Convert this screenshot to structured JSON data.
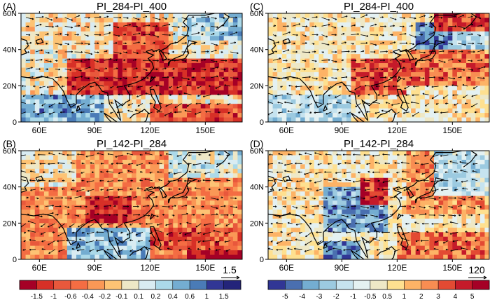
{
  "chart_data": [
    {
      "type": "heatmap",
      "panel_label": "(A)",
      "title": "PI_284-PI_400",
      "x_ticks": [
        "60E",
        "90E",
        "120E",
        "150E"
      ],
      "y_ticks": [
        "0",
        "20N",
        "40N",
        "60N"
      ],
      "xlim": [
        50,
        170
      ],
      "ylim": [
        0,
        60
      ],
      "overlay": "wind vectors and coastlines",
      "colorbar": "left"
    },
    {
      "type": "heatmap",
      "panel_label": "(B)",
      "title": "PI_142-PI_284",
      "x_ticks": [
        "60E",
        "90E",
        "120E",
        "150E"
      ],
      "y_ticks": [
        "0",
        "20N",
        "40N",
        "60N"
      ],
      "xlim": [
        50,
        170
      ],
      "ylim": [
        0,
        60
      ],
      "overlay": "wind vectors and coastlines",
      "colorbar": "left",
      "reference_vector": "1.5"
    },
    {
      "type": "heatmap",
      "panel_label": "(C)",
      "title": "PI_284-PI_400",
      "x_ticks": [
        "60E",
        "90E",
        "120E",
        "150E"
      ],
      "y_ticks": [
        "0",
        "20N",
        "40N",
        "60N"
      ],
      "xlim": [
        50,
        170
      ],
      "ylim": [
        0,
        60
      ],
      "overlay": "wind vectors and coastlines",
      "colorbar": "right"
    },
    {
      "type": "heatmap",
      "panel_label": "(D)",
      "title": "PI_142-PI_284",
      "x_ticks": [
        "60E",
        "90E",
        "120E",
        "150E"
      ],
      "y_ticks": [
        "0",
        "20N",
        "40N",
        "60N"
      ],
      "xlim": [
        50,
        170
      ],
      "ylim": [
        0,
        60
      ],
      "overlay": "wind vectors and coastlines",
      "colorbar": "right",
      "reference_vector": "120"
    }
  ],
  "colorbars": {
    "left": {
      "labels": [
        "-1.5",
        "-1",
        "-0.6",
        "-0.4",
        "-0.2",
        "-0.1",
        "0.1",
        "0.2",
        "0.4",
        "0.6",
        "1",
        "1.5"
      ],
      "colors": [
        "#a50026",
        "#d73027",
        "#e8583c",
        "#f46d43",
        "#fa9856",
        "#fdc374",
        "#eee8c6",
        "#d9ecf2",
        "#abd9e9",
        "#74add1",
        "#4a7bb7",
        "#313695",
        "#23247a"
      ]
    },
    "right": {
      "labels": [
        "-5",
        "-4",
        "-3",
        "-2",
        "-1",
        "-0.5",
        "0.5",
        "1",
        "2",
        "3",
        "4",
        "5"
      ],
      "colors": [
        "#313695",
        "#4a6fb0",
        "#74add1",
        "#9ccae0",
        "#c6e3ef",
        "#e4f1f2",
        "#eee8c6",
        "#fee090",
        "#fdb366",
        "#f88d52",
        "#e34a33",
        "#c51a2a",
        "#a50026"
      ]
    }
  },
  "colors": {
    "neutral": "#eee8c6",
    "land_line": "#000000",
    "vector": "#000000"
  }
}
